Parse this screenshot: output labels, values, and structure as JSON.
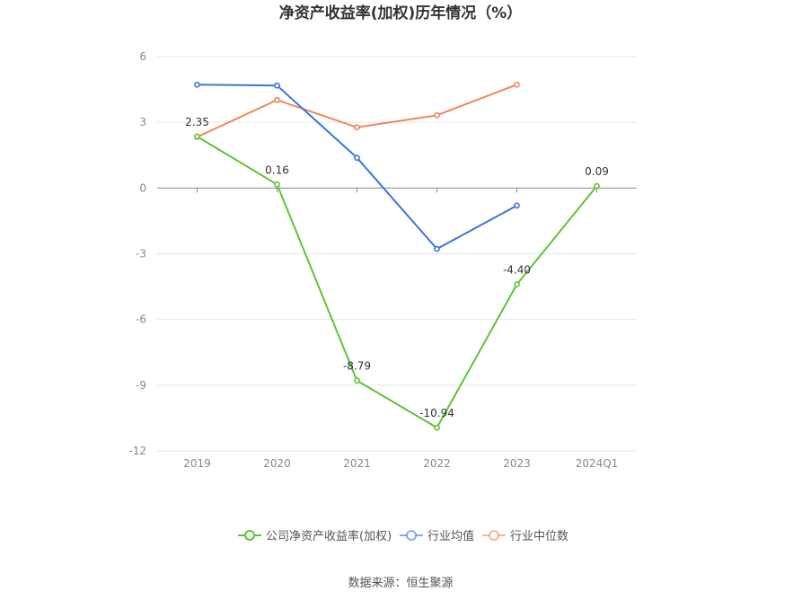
{
  "chart_data": {
    "type": "line",
    "title": "净资产收益率(加权)历年情况（%）",
    "categories": [
      "2019",
      "2020",
      "2021",
      "2022",
      "2023",
      "2024Q1"
    ],
    "ylim": [
      -12,
      6
    ],
    "yticks": [
      6,
      3,
      0,
      -3,
      -6,
      -9,
      -12
    ],
    "grid": true,
    "legend_position": "bottom",
    "series": [
      {
        "name": "公司净资产收益率(加权)",
        "color": "#5fc433",
        "values": [
          2.35,
          0.16,
          -8.79,
          -10.94,
          -4.4,
          0.09
        ],
        "labels": [
          "2.35",
          "0.16",
          "-8.79",
          "-10.94",
          "-4.40",
          "0.09"
        ]
      },
      {
        "name": "行业均值",
        "color": "#3d74db",
        "values": [
          4.72,
          4.68,
          1.38,
          -2.78,
          -0.8,
          null
        ]
      },
      {
        "name": "行业中位数",
        "color": "#f0875a",
        "values": [
          2.33,
          4.02,
          2.77,
          3.32,
          4.72,
          null
        ]
      }
    ]
  },
  "source": "数据来源：恒生聚源"
}
